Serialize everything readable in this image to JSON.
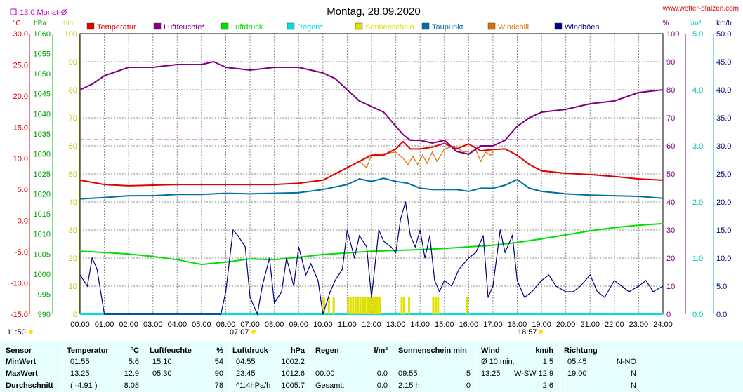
{
  "title": "Montag, 28.09.2020",
  "site": "www.wetter-pfalzen.com",
  "monthly_avg_label": "13.0 Monat-Ø",
  "start_time": "11:50",
  "sunrise": "07:07",
  "sunset": "18:57",
  "colors": {
    "temperature": "#e00000",
    "humidity": "#800080",
    "pressure": "#00e000",
    "rain": "#00e0e0",
    "sunshine": "#e0e000",
    "dewpoint": "#0070a0",
    "windchill": "#e07000",
    "gusts": "#000080",
    "monthavg": "#c000c0"
  },
  "legend": [
    {
      "key": "temperature",
      "label": "Temperatur"
    },
    {
      "key": "humidity",
      "label": "Luftfeuchte*"
    },
    {
      "key": "pressure",
      "label": "Luftdruck"
    },
    {
      "key": "rain",
      "label": "Regen*"
    },
    {
      "key": "sunshine",
      "label": "Sonnenschein"
    },
    {
      "key": "dewpoint",
      "label": "Taupunkt"
    },
    {
      "key": "windchill",
      "label": "Windchill"
    },
    {
      "key": "gusts",
      "label": "Windböen"
    }
  ],
  "axes": {
    "temp": {
      "unit": "°C",
      "ticks": [
        "30.0",
        "25.0",
        "20.0",
        "15.0",
        "10.0",
        "5.0",
        "0.0",
        "-5.0",
        "-10.0",
        "-15.0"
      ]
    },
    "press": {
      "unit": "hPa",
      "ticks": [
        "1060",
        "1055",
        "1050",
        "1045",
        "1040",
        "1035",
        "1030",
        "1025",
        "1020",
        "1015",
        "1010",
        "1005",
        "1000",
        "995",
        "990"
      ]
    },
    "minutes": {
      "unit": "min",
      "ticks": [
        "100",
        "90",
        "80",
        "70",
        "60",
        "50",
        "40",
        "30",
        "20",
        "10",
        "0"
      ]
    },
    "pct": {
      "unit": "%",
      "ticks": [
        "100",
        "90",
        "80",
        "70",
        "60",
        "50",
        "40",
        "30",
        "20",
        "10",
        "0"
      ]
    },
    "rain": {
      "unit": "l/m²",
      "ticks": [
        "5.0",
        "4.0",
        "3.0",
        "2.0",
        "1.0",
        "0.0"
      ]
    },
    "wind": {
      "unit": "km/h",
      "ticks": [
        "50.0",
        "45.0",
        "40.0",
        "35.0",
        "30.0",
        "25.0",
        "20.0",
        "15.0",
        "10.0",
        "5.0",
        "0.0"
      ]
    },
    "x": [
      "00:00",
      "01:00",
      "02:00",
      "03:00",
      "04:00",
      "05:00",
      "06:00",
      "07:00",
      "08:00",
      "09:00",
      "10:00",
      "11:00",
      "12:00",
      "13:00",
      "14:00",
      "15:00",
      "16:00",
      "17:00",
      "18:00",
      "19:00",
      "20:00",
      "21:00",
      "22:00",
      "23:00",
      "24:00"
    ]
  },
  "chart_data": {
    "type": "line",
    "title": "Montag, 28.09.2020",
    "x_unit": "hour",
    "xlim": [
      0,
      24
    ],
    "monthly_avg_temp": 13.0,
    "series": [
      {
        "name": "Temperatur",
        "axis": "temp",
        "x": [
          0,
          1,
          2,
          3,
          4,
          5,
          6,
          7,
          8,
          9,
          10,
          11,
          11.5,
          12,
          12.5,
          13,
          13.3,
          13.6,
          14,
          14.5,
          15,
          15.5,
          16,
          16.5,
          17,
          17.5,
          18,
          18.5,
          19,
          20,
          21,
          22,
          23,
          24
        ],
        "y": [
          6.5,
          5.8,
          5.6,
          5.7,
          5.8,
          5.8,
          5.8,
          5.8,
          5.8,
          6.0,
          6.5,
          8.5,
          9.5,
          10.5,
          10.5,
          11.5,
          12.7,
          11.5,
          11.5,
          11.8,
          12.4,
          11.5,
          12.3,
          11.2,
          11.4,
          11.5,
          10.5,
          9.0,
          8.0,
          7.6,
          7.4,
          7.1,
          6.7,
          6.5
        ]
      },
      {
        "name": "Luftfeuchte",
        "axis": "pct",
        "x": [
          0,
          0.5,
          1,
          2,
          3,
          4,
          5,
          5.5,
          6,
          7,
          8,
          9,
          10,
          10.5,
          11,
          11.5,
          12,
          12.5,
          13,
          13.3,
          13.6,
          14,
          14.5,
          15,
          15.5,
          16,
          16.5,
          17,
          17.5,
          18,
          18.5,
          19,
          20,
          21,
          22,
          23,
          24
        ],
        "y": [
          80,
          82,
          85,
          88,
          88,
          89,
          89,
          90,
          88,
          87,
          88,
          88,
          86,
          84,
          80,
          76,
          74,
          72,
          67,
          64,
          62,
          62,
          61,
          62,
          58,
          57,
          60,
          60,
          62,
          67,
          70,
          72,
          73,
          75,
          76,
          79,
          80
        ]
      },
      {
        "name": "Luftdruck",
        "axis": "press",
        "x": [
          0,
          1,
          2,
          3,
          4,
          5,
          6,
          7,
          8,
          9,
          10,
          11,
          12,
          13,
          14,
          15,
          16,
          17,
          18,
          19,
          20,
          21,
          22,
          23,
          24
        ],
        "y": [
          1005.7,
          1005.4,
          1005.0,
          1004.4,
          1003.6,
          1002.4,
          1003.0,
          1003.8,
          1003.6,
          1004.2,
          1004.9,
          1005.3,
          1005.7,
          1005.9,
          1006.1,
          1006.4,
          1006.8,
          1007.2,
          1007.9,
          1008.8,
          1009.8,
          1010.8,
          1011.6,
          1012.2,
          1012.6
        ]
      },
      {
        "name": "Taupunkt",
        "axis": "temp",
        "x": [
          0,
          1,
          2,
          3,
          4,
          5,
          6,
          7,
          8,
          9,
          10,
          11,
          11.5,
          12,
          12.5,
          13,
          13.5,
          14,
          14.5,
          15,
          15.5,
          16,
          16.5,
          17,
          17.5,
          18,
          18.5,
          19,
          20,
          21,
          22,
          23,
          24
        ],
        "y": [
          3.5,
          3.7,
          4.0,
          4.0,
          4.2,
          4.2,
          4.4,
          4.3,
          4.4,
          4.5,
          5.0,
          5.8,
          6.7,
          6.3,
          6.8,
          6.3,
          6.0,
          5.2,
          5.0,
          5.0,
          5.0,
          4.7,
          5.2,
          5.2,
          5.7,
          6.6,
          5.2,
          4.7,
          4.3,
          4.1,
          4.0,
          3.9,
          3.6
        ]
      },
      {
        "name": "Windchill",
        "axis": "temp",
        "x": [
          11.5,
          11.8,
          12,
          13,
          13.3,
          13.5,
          13.7,
          13.9,
          14.1,
          14.3,
          14.5,
          14.7,
          15.0,
          15.4,
          15.8,
          16.3,
          16.5,
          16.7,
          16.9,
          17.0
        ],
        "y": [
          9.5,
          8.5,
          10.5,
          11.0,
          10.0,
          9.0,
          10.3,
          9.0,
          10.5,
          9.2,
          11.0,
          9.5,
          11.5,
          12.0,
          11.0,
          11.3,
          9.5,
          11.0,
          10.5,
          11.0
        ]
      },
      {
        "name": "Windböen",
        "axis": "wind",
        "x": [
          0,
          0.3,
          0.5,
          0.7,
          1,
          3,
          5,
          5.8,
          6,
          6.3,
          6.5,
          6.8,
          7,
          7.3,
          7.5,
          7.8,
          8,
          8.3,
          8.5,
          8.8,
          9,
          9.3,
          9.5,
          9.8,
          10,
          10.3,
          10.5,
          10.8,
          11,
          11.3,
          11.5,
          11.8,
          12,
          12.3,
          12.5,
          12.8,
          13,
          13.2,
          13.4,
          13.6,
          13.8,
          14,
          14.2,
          14.4,
          14.6,
          14.8,
          15,
          15.3,
          15.6,
          16,
          16.3,
          16.6,
          16.8,
          17,
          17.3,
          17.5,
          17.8,
          18,
          18.3,
          18.6,
          19,
          19.3,
          19.6,
          20,
          20.3,
          20.6,
          21,
          21.3,
          21.6,
          22,
          22.3,
          22.6,
          23,
          23.3,
          23.6,
          24
        ],
        "y": [
          7,
          5,
          10,
          8,
          0,
          0,
          0,
          0,
          4,
          15,
          14,
          12,
          3,
          0,
          5,
          10,
          2,
          4,
          10,
          5,
          12,
          7,
          9,
          6,
          0,
          4,
          6,
          8,
          15,
          10,
          14,
          12,
          3,
          15,
          13,
          12,
          11,
          17,
          20,
          14,
          12,
          15,
          10,
          14,
          6,
          4,
          6,
          5,
          8,
          10,
          11,
          14,
          3,
          5,
          15,
          11,
          14,
          6,
          3,
          4,
          6,
          7,
          5,
          4,
          4,
          5,
          7,
          4,
          3,
          6,
          5,
          4,
          5,
          6,
          4,
          5
        ]
      },
      {
        "name": "Sonnenschein",
        "axis": "minutes",
        "type": "bar",
        "x": [
          10.0,
          10.2,
          10.4,
          11.0,
          11.1,
          11.2,
          11.3,
          11.4,
          11.5,
          11.6,
          11.7,
          11.8,
          11.9,
          12.0,
          12.1,
          12.2,
          12.3,
          13.2,
          13.3,
          13.5,
          14.5,
          14.6,
          14.7,
          15.9
        ],
        "y": [
          5,
          5,
          5,
          5,
          5,
          5,
          5,
          5,
          5,
          5,
          5,
          5,
          5,
          5,
          5,
          5,
          5,
          5,
          5,
          5,
          5,
          5,
          5,
          5
        ]
      },
      {
        "name": "Regen",
        "axis": "rain",
        "x": [
          0,
          24
        ],
        "y": [
          0,
          0
        ]
      }
    ]
  },
  "stats": {
    "headers": {
      "sensor": "Sensor",
      "temperature": "Temperatur",
      "temp_unit": "°C",
      "humidity": "Luftfeuchte",
      "hum_unit": "%",
      "pressure": "Luftdruck",
      "press_unit": "hPa",
      "rain": "Regen",
      "rain_unit": "l/m²",
      "sunshine": "Sonnenschein min",
      "wind": "Wind",
      "wind_unit": "km/h",
      "direction": "Richtung"
    },
    "rows": [
      {
        "label": "MinWert",
        "t_time": "01:55",
        "t_val": "5.6",
        "h_time": "15:10",
        "h_val": "54",
        "p_time": "04:55",
        "p_val": "1002.2",
        "r_time": "",
        "r_val": "",
        "s_time": "",
        "s_val": "",
        "w_time": "Ø 10 min.",
        "w_dir": "",
        "w_val": "1.5",
        "d_time": "05:45",
        "d_val": "N-NO"
      },
      {
        "label": "MaxWert",
        "t_time": "13:25",
        "t_val": "12.9",
        "h_time": "05:30",
        "h_val": "90",
        "p_time": "23:45",
        "p_val": "1012.6",
        "r_time": "00:00",
        "r_val": "0.0",
        "s_time": "09:55",
        "s_val": "5",
        "w_time": "13:25",
        "w_dir": "W-SW",
        "w_val": "12.9",
        "d_time": "19:00",
        "d_val": "N"
      },
      {
        "label": "Durchschnitt",
        "t_time": "( -4.91 )",
        "t_val": "8.08",
        "h_time": "",
        "h_val": "78",
        "p_time": "^1.4hPa/h",
        "p_val": "1005.7",
        "r_time": "Gesamt:",
        "r_val": "0.0",
        "s_time": "2:15 h",
        "s_val": "0",
        "w_time": "",
        "w_dir": "",
        "w_val": "2.6",
        "d_time": "",
        "d_val": "N"
      }
    ]
  }
}
